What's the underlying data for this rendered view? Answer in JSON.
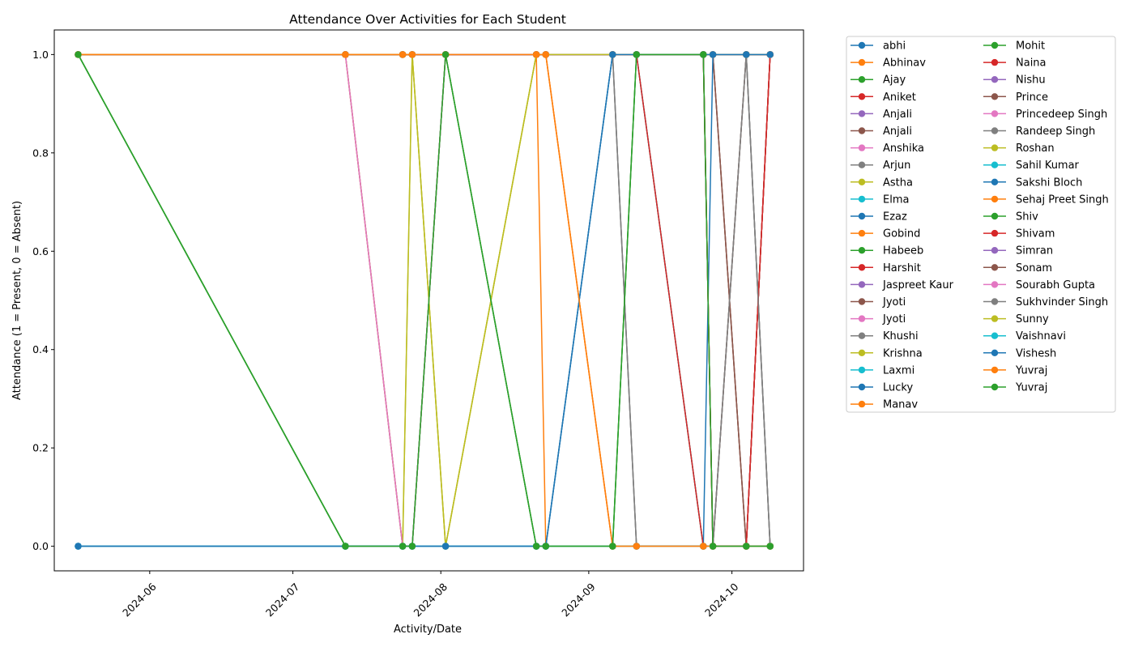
{
  "chart_data": {
    "type": "line",
    "title": "Attendance Over Activities for Each Student",
    "xlabel": "Activity/Date",
    "ylabel": "Attendance (1 = Present, 0 = Absent)",
    "x_axis": "date",
    "xlim": [
      "2024-05-12",
      "2024-10-16"
    ],
    "ylim": [
      -0.05,
      1.05
    ],
    "x_ticks": [
      "2024-06-01",
      "2024-07-01",
      "2024-08-01",
      "2024-09-01",
      "2024-10-01"
    ],
    "x_tick_labels": [
      "2024-06",
      "2024-07",
      "2024-08",
      "2024-09",
      "2024-10"
    ],
    "y_ticks": [
      0.0,
      0.2,
      0.4,
      0.6,
      0.8,
      1.0
    ],
    "y_tick_labels": [
      "0.0",
      "0.2",
      "0.4",
      "0.6",
      "0.8",
      "1.0"
    ],
    "grid": false,
    "legend_position": "outside-right-top",
    "legend_columns": 2,
    "dates": [
      "2024-05-17",
      "2024-07-12",
      "2024-07-24",
      "2024-07-26",
      "2024-08-02",
      "2024-08-21",
      "2024-08-23",
      "2024-09-06",
      "2024-09-11",
      "2024-09-25",
      "2024-09-27",
      "2024-10-04",
      "2024-10-09"
    ],
    "series": [
      {
        "name": "abhi",
        "color": "#1f77b4",
        "values": [
          1,
          1,
          1,
          1,
          1,
          1,
          1,
          1,
          1,
          1,
          1,
          1,
          1
        ]
      },
      {
        "name": "Abhinav",
        "color": "#ff7f0e",
        "values": [
          1,
          1,
          1,
          1,
          1,
          1,
          1,
          1,
          1,
          1,
          1,
          1,
          1
        ]
      },
      {
        "name": "Ajay",
        "color": "#2ca02c",
        "values": [
          1,
          0,
          0,
          0,
          1,
          1,
          1,
          1,
          1,
          1,
          1,
          1,
          1
        ]
      },
      {
        "name": "Aniket",
        "color": "#d62728",
        "values": [
          1,
          1,
          1,
          1,
          1,
          1,
          1,
          1,
          1,
          1,
          0,
          0,
          1
        ]
      },
      {
        "name": "Anjali",
        "color": "#9467bd",
        "values": [
          1,
          1,
          1,
          1,
          1,
          1,
          1,
          1,
          1,
          1,
          1,
          1,
          1
        ]
      },
      {
        "name": "Anjali",
        "color": "#8c564b",
        "values": [
          1,
          1,
          1,
          1,
          1,
          1,
          1,
          1,
          1,
          1,
          1,
          0,
          1
        ]
      },
      {
        "name": "Anshika",
        "color": "#e377c2",
        "values": [
          1,
          1,
          0,
          0,
          1,
          1,
          1,
          1,
          1,
          1,
          1,
          1,
          1
        ]
      },
      {
        "name": "Arjun",
        "color": "#7f7f7f",
        "values": [
          1,
          1,
          1,
          1,
          1,
          1,
          1,
          1,
          0,
          0,
          0,
          1,
          0
        ]
      },
      {
        "name": "Astha",
        "color": "#bcbd22",
        "values": [
          1,
          1,
          0,
          1,
          0,
          1,
          1,
          1,
          1,
          1,
          1,
          1,
          1
        ]
      },
      {
        "name": "Elma",
        "color": "#17becf",
        "values": [
          1,
          1,
          1,
          1,
          1,
          1,
          1,
          1,
          1,
          1,
          1,
          1,
          1
        ]
      },
      {
        "name": "Ezaz",
        "color": "#1f77b4",
        "values": [
          1,
          1,
          1,
          1,
          1,
          1,
          1,
          1,
          1,
          1,
          1,
          1,
          1
        ]
      },
      {
        "name": "Gobind",
        "color": "#ff7f0e",
        "values": [
          1,
          1,
          1,
          1,
          1,
          1,
          0,
          0,
          0,
          0,
          0,
          0,
          0
        ]
      },
      {
        "name": "Habeeb",
        "color": "#2ca02c",
        "values": [
          1,
          1,
          1,
          1,
          1,
          1,
          1,
          1,
          1,
          1,
          1,
          1,
          1
        ]
      },
      {
        "name": "Harshit",
        "color": "#d62728",
        "values": [
          1,
          1,
          1,
          1,
          1,
          1,
          1,
          1,
          1,
          1,
          0,
          0,
          1
        ]
      },
      {
        "name": "Jaspreet Kaur",
        "color": "#9467bd",
        "values": [
          1,
          1,
          1,
          1,
          1,
          1,
          1,
          1,
          1,
          1,
          1,
          1,
          1
        ]
      },
      {
        "name": "Jyoti",
        "color": "#8c564b",
        "values": [
          1,
          1,
          1,
          1,
          1,
          1,
          1,
          1,
          1,
          1,
          1,
          0,
          1
        ]
      },
      {
        "name": "Jyoti",
        "color": "#e377c2",
        "values": [
          1,
          1,
          0,
          0,
          1,
          1,
          1,
          1,
          1,
          1,
          1,
          1,
          1
        ]
      },
      {
        "name": "Khushi",
        "color": "#7f7f7f",
        "values": [
          1,
          1,
          1,
          1,
          1,
          1,
          1,
          1,
          1,
          1,
          1,
          1,
          0
        ]
      },
      {
        "name": "Krishna",
        "color": "#bcbd22",
        "values": [
          1,
          1,
          1,
          1,
          1,
          1,
          1,
          1,
          1,
          1,
          1,
          1,
          1
        ]
      },
      {
        "name": "Laxmi",
        "color": "#17becf",
        "values": [
          1,
          1,
          1,
          1,
          1,
          1,
          1,
          1,
          1,
          1,
          1,
          1,
          1
        ]
      },
      {
        "name": "Lucky",
        "color": "#1f77b4",
        "values": [
          0,
          0,
          0,
          0,
          0,
          0,
          0,
          1,
          1,
          1,
          1,
          1,
          1
        ]
      },
      {
        "name": "Manav",
        "color": "#ff7f0e",
        "values": [
          1,
          1,
          1,
          1,
          1,
          1,
          1,
          0,
          0,
          0,
          0,
          0,
          0
        ]
      },
      {
        "name": "Mohit",
        "color": "#2ca02c",
        "values": [
          1,
          0,
          0,
          0,
          1,
          0,
          0,
          0,
          1,
          0,
          0,
          0,
          0
        ]
      },
      {
        "name": "Naina",
        "color": "#d62728",
        "values": [
          1,
          1,
          1,
          1,
          1,
          1,
          1,
          1,
          1,
          1,
          0,
          0,
          1
        ]
      },
      {
        "name": "Nishu",
        "color": "#9467bd",
        "values": [
          1,
          1,
          1,
          1,
          1,
          1,
          1,
          1,
          1,
          1,
          1,
          1,
          1
        ]
      },
      {
        "name": "Prince",
        "color": "#8c564b",
        "values": [
          1,
          1,
          1,
          1,
          1,
          1,
          1,
          1,
          1,
          1,
          1,
          0,
          1
        ]
      },
      {
        "name": "Princedeep Singh",
        "color": "#e377c2",
        "values": [
          1,
          1,
          0,
          0,
          1,
          1,
          1,
          1,
          1,
          1,
          1,
          1,
          1
        ]
      },
      {
        "name": "Randeep Singh",
        "color": "#7f7f7f",
        "values": [
          1,
          1,
          1,
          1,
          1,
          1,
          1,
          1,
          0,
          0,
          0,
          1,
          0
        ]
      },
      {
        "name": "Roshan",
        "color": "#bcbd22",
        "values": [
          1,
          1,
          0,
          1,
          0,
          1,
          1,
          1,
          1,
          1,
          1,
          1,
          1
        ]
      },
      {
        "name": "Sahil Kumar",
        "color": "#17becf",
        "values": [
          0,
          0,
          0,
          0,
          0,
          0,
          0,
          0,
          0,
          0,
          0,
          0,
          0
        ]
      },
      {
        "name": "Sakshi Bloch",
        "color": "#1f77b4",
        "values": [
          0,
          0,
          0,
          0,
          0,
          0,
          0,
          1,
          1,
          0,
          1,
          1,
          1
        ]
      },
      {
        "name": "Sehaj Preet Singh",
        "color": "#ff7f0e",
        "values": [
          1,
          1,
          1,
          1,
          1,
          1,
          1,
          0,
          0,
          0,
          0,
          0,
          0
        ]
      },
      {
        "name": "Shiv",
        "color": "#2ca02c",
        "values": [
          1,
          0,
          0,
          0,
          1,
          0,
          0,
          0,
          1,
          1,
          0,
          0,
          0
        ]
      },
      {
        "name": "Shivam",
        "color": "#d62728",
        "values": [
          1,
          1,
          1,
          1,
          1,
          1,
          1,
          1,
          1,
          0,
          0,
          0,
          1
        ]
      },
      {
        "name": "Simran",
        "color": "#9467bd",
        "values": [
          1,
          1,
          1,
          1,
          1,
          1,
          1,
          1,
          1,
          1,
          1,
          1,
          1
        ]
      },
      {
        "name": "Sonam",
        "color": "#8c564b",
        "values": [
          1,
          1,
          1,
          1,
          1,
          1,
          1,
          1,
          1,
          1,
          0,
          1,
          1
        ]
      },
      {
        "name": "Sourabh Gupta",
        "color": "#e377c2",
        "values": [
          1,
          1,
          0,
          0,
          1,
          1,
          1,
          1,
          1,
          1,
          1,
          1,
          1
        ]
      },
      {
        "name": "Sukhvinder Singh",
        "color": "#7f7f7f",
        "values": [
          1,
          1,
          1,
          1,
          1,
          1,
          1,
          1,
          0,
          0,
          0,
          1,
          0
        ]
      },
      {
        "name": "Sunny",
        "color": "#bcbd22",
        "values": [
          1,
          1,
          1,
          1,
          0,
          1,
          1,
          1,
          1,
          1,
          1,
          1,
          1
        ]
      },
      {
        "name": "Vaishnavi",
        "color": "#17becf",
        "values": [
          0,
          0,
          0,
          0,
          0,
          0,
          0,
          0,
          0,
          0,
          0,
          0,
          0
        ]
      },
      {
        "name": "Vishesh",
        "color": "#1f77b4",
        "values": [
          0,
          0,
          0,
          0,
          0,
          0,
          0,
          1,
          1,
          1,
          1,
          1,
          1
        ]
      },
      {
        "name": "Yuvraj",
        "color": "#ff7f0e",
        "values": [
          1,
          1,
          1,
          1,
          1,
          1,
          1,
          0,
          0,
          0,
          0,
          0,
          0
        ]
      },
      {
        "name": "Yuvraj",
        "color": "#2ca02c",
        "values": [
          1,
          0,
          0,
          0,
          1,
          0,
          0,
          0,
          1,
          1,
          0,
          0,
          0
        ]
      }
    ]
  }
}
